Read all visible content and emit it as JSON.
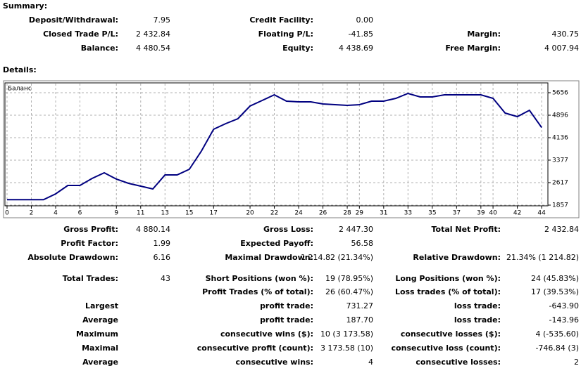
{
  "summary": {
    "title": "Summary:",
    "rows": [
      [
        "Deposit/Withdrawal:",
        "7.95",
        "Credit Facility:",
        "0.00",
        null,
        null
      ],
      [
        "Closed Trade P/L:",
        "2 432.84",
        "Floating P/L:",
        "-41.85",
        "Margin:",
        "430.75"
      ],
      [
        "Balance:",
        "4 480.54",
        "Equity:",
        "4 438.69",
        "Free Margin:",
        "4 007.94"
      ]
    ]
  },
  "details": {
    "title": "Details:",
    "rows": [
      [
        "Gross Profit:",
        "4 880.14",
        "Gross Loss:",
        "2 447.30",
        "Total Net Profit:",
        "2 432.84"
      ],
      [
        "Profit Factor:",
        "1.99",
        "Expected Payoff:",
        "56.58",
        null,
        null
      ],
      [
        "Absolute Drawdown:",
        "6.16",
        "Maximal Drawdown:",
        "1 214.82 (21.34%)",
        "Relative Drawdown:",
        "21.34% (1 214.82)"
      ],
      [
        "Total Trades:",
        "43",
        "Short Positions (won %):",
        "19 (78.95%)",
        "Long Positions (won %):",
        "24 (45.83%)"
      ],
      [
        null,
        null,
        "Profit Trades (% of total):",
        "26 (60.47%)",
        "Loss trades (% of total):",
        "17 (39.53%)"
      ],
      [
        "Largest",
        null,
        "profit trade:",
        "731.27",
        "loss trade:",
        "-643.90"
      ],
      [
        "Average",
        null,
        "profit trade:",
        "187.70",
        "loss trade:",
        "-143.96"
      ],
      [
        "Maximum",
        null,
        "consecutive wins ($):",
        "10 (3 173.58)",
        "consecutive losses ($):",
        "4 (-535.60)"
      ],
      [
        "Maximal",
        null,
        "consecutive profit (count):",
        "3 173.58 (10)",
        "consecutive loss (count):",
        "-746.84 (3)"
      ],
      [
        "Average",
        null,
        "consecutive wins:",
        "4",
        "consecutive losses:",
        "2"
      ]
    ]
  },
  "chart_data": {
    "type": "line",
    "title": "Баланс",
    "color": "#000080",
    "grid": true,
    "x": [
      0,
      1,
      2,
      3,
      4,
      5,
      6,
      7,
      8,
      9,
      10,
      11,
      12,
      13,
      14,
      15,
      16,
      17,
      18,
      19,
      20,
      21,
      22,
      23,
      24,
      25,
      26,
      27,
      28,
      29,
      30,
      31,
      32,
      33,
      34,
      35,
      36,
      37,
      38,
      39,
      40,
      41,
      42,
      43,
      44
    ],
    "values": [
      2040,
      2040,
      2040,
      2040,
      2237,
      2522,
      2522,
      2759,
      2949,
      2735,
      2593,
      2498,
      2403,
      2878,
      2878,
      3068,
      3685,
      4421,
      4611,
      4777,
      5204,
      5394,
      5584,
      5370,
      5347,
      5347,
      5276,
      5252,
      5228,
      5252,
      5370,
      5370,
      5465,
      5632,
      5513,
      5513,
      5584,
      5584,
      5584,
      5584,
      5465,
      4967,
      4848,
      5062,
      4480.54
    ],
    "xlim": [
      0,
      44.4
    ],
    "xticks": [
      0,
      2,
      4,
      6,
      9,
      11,
      13,
      15,
      17,
      20,
      22,
      24,
      26,
      28,
      29,
      31,
      33,
      35,
      37,
      39,
      40,
      42,
      44
    ],
    "ylim": [
      1833,
      5988
    ],
    "yticks": [
      1857,
      2617,
      3377,
      4136,
      4896,
      5656
    ]
  }
}
